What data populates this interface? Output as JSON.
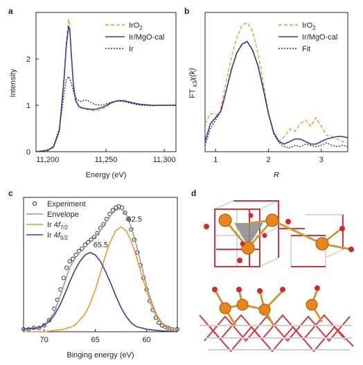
{
  "panels": {
    "a": "a",
    "b": "b",
    "c": "c",
    "d": "d"
  },
  "chart_data": [
    {
      "id": "a",
      "type": "line",
      "xlabel": "Energy (eV)",
      "ylabel": "Intensity",
      "xlim": [
        11190,
        11310
      ],
      "ylim": [
        0,
        3.0
      ],
      "xticks": [
        11200,
        11250,
        11300
      ],
      "xtick_labels": [
        "11,200",
        "11,250",
        "11,300"
      ],
      "yticks": [
        0,
        1,
        2
      ],
      "ytick_labels": [
        "0",
        "1",
        "2"
      ],
      "legend_position": "top-right",
      "series": [
        {
          "name": "IrO2",
          "name_main": "IrO",
          "name_sub": "2",
          "color": "#f0962f",
          "style": "dashed",
          "x": [
            11190,
            11200,
            11205,
            11210,
            11214,
            11216,
            11218,
            11219,
            11220,
            11222,
            11224,
            11227,
            11230,
            11235,
            11240,
            11245,
            11250,
            11255,
            11260,
            11265,
            11270,
            11275,
            11280,
            11290,
            11300,
            11310
          ],
          "y": [
            0.0,
            0.03,
            0.1,
            0.45,
            1.6,
            2.4,
            2.85,
            2.7,
            2.2,
            1.4,
            1.08,
            0.95,
            0.93,
            0.9,
            0.88,
            0.9,
            0.97,
            1.05,
            1.1,
            1.1,
            1.07,
            1.04,
            1.02,
            1.0,
            1.0,
            1.0
          ]
        },
        {
          "name": "Ir/MgO-cal",
          "color": "#3a3aa8",
          "style": "solid",
          "x": [
            11190,
            11200,
            11205,
            11210,
            11214,
            11216,
            11218,
            11219,
            11220,
            11222,
            11224,
            11227,
            11230,
            11235,
            11240,
            11245,
            11250,
            11255,
            11260,
            11265,
            11270,
            11275,
            11280,
            11290,
            11300,
            11310
          ],
          "y": [
            0.0,
            0.03,
            0.1,
            0.45,
            1.55,
            2.3,
            2.7,
            2.62,
            2.2,
            1.45,
            1.1,
            0.97,
            0.94,
            0.92,
            0.91,
            0.94,
            0.99,
            1.06,
            1.1,
            1.1,
            1.07,
            1.04,
            1.02,
            1.0,
            1.0,
            1.0
          ]
        },
        {
          "name": "Ir",
          "color": "#333333",
          "style": "dotted",
          "x": [
            11190,
            11200,
            11205,
            11210,
            11214,
            11216,
            11218,
            11220,
            11222,
            11225,
            11228,
            11232,
            11236,
            11240,
            11245,
            11250,
            11255,
            11260,
            11265,
            11270,
            11275,
            11280,
            11290,
            11300,
            11310
          ],
          "y": [
            0.0,
            0.03,
            0.12,
            0.5,
            1.25,
            1.55,
            1.62,
            1.5,
            1.3,
            1.12,
            1.08,
            1.12,
            1.08,
            1.02,
            1.0,
            1.03,
            1.07,
            1.09,
            1.08,
            1.05,
            1.02,
            1.0,
            0.99,
            1.0,
            1.0
          ]
        }
      ]
    },
    {
      "id": "b",
      "type": "line",
      "xlabel": "R",
      "ylabel_main": "FT ",
      "ylabel_sub": "k3",
      "ylabel_rest": "χ(k)",
      "xlim": [
        0.8,
        3.5
      ],
      "ylim": [
        0,
        1.1
      ],
      "xticks": [
        1,
        2,
        3
      ],
      "xtick_labels": [
        "1",
        "2",
        "3"
      ],
      "legend_position": "top-right",
      "series": [
        {
          "name": "IrO2",
          "name_main": "IrO",
          "name_sub": "2",
          "color": "#f0962f",
          "style": "dashed",
          "x": [
            0.8,
            0.9,
            1.0,
            1.05,
            1.1,
            1.2,
            1.3,
            1.4,
            1.5,
            1.6,
            1.7,
            1.8,
            1.9,
            2.0,
            2.1,
            2.2,
            2.3,
            2.4,
            2.5,
            2.6,
            2.7,
            2.8,
            2.9,
            3.0,
            3.1,
            3.2,
            3.3,
            3.4,
            3.5
          ],
          "y": [
            0.22,
            0.3,
            0.3,
            0.28,
            0.35,
            0.55,
            0.75,
            0.9,
            1.0,
            1.02,
            0.95,
            0.78,
            0.55,
            0.3,
            0.14,
            0.08,
            0.12,
            0.18,
            0.16,
            0.22,
            0.25,
            0.2,
            0.27,
            0.2,
            0.13,
            0.12,
            0.1,
            0.08,
            0.07
          ]
        },
        {
          "name": "Ir/MgO-cal",
          "color": "#3a3aa8",
          "style": "solid",
          "x": [
            0.8,
            0.9,
            1.0,
            1.1,
            1.2,
            1.3,
            1.4,
            1.5,
            1.6,
            1.7,
            1.8,
            1.9,
            2.0,
            2.1,
            2.2,
            2.3,
            2.4,
            2.5,
            2.6,
            2.7,
            2.8,
            2.9,
            3.0,
            3.1,
            3.2,
            3.3,
            3.4,
            3.5
          ],
          "y": [
            0.08,
            0.22,
            0.27,
            0.32,
            0.48,
            0.65,
            0.78,
            0.85,
            0.87,
            0.8,
            0.68,
            0.5,
            0.3,
            0.15,
            0.08,
            0.06,
            0.08,
            0.1,
            0.1,
            0.08,
            0.06,
            0.06,
            0.08,
            0.1,
            0.11,
            0.12,
            0.12,
            0.11
          ]
        },
        {
          "name": "Fit",
          "color": "#333333",
          "style": "dotted",
          "x": [
            0.8,
            0.9,
            1.0,
            1.1,
            1.2,
            1.3,
            1.4,
            1.5,
            1.6,
            1.7,
            1.8,
            1.9,
            2.0,
            2.1,
            2.2,
            2.3,
            2.4,
            2.5,
            2.6,
            2.7,
            2.8,
            2.9,
            3.0,
            3.1,
            3.2,
            3.3,
            3.4,
            3.5
          ],
          "y": [
            0.05,
            0.18,
            0.25,
            0.32,
            0.48,
            0.65,
            0.78,
            0.85,
            0.87,
            0.8,
            0.68,
            0.5,
            0.3,
            0.14,
            0.07,
            0.04,
            0.03,
            0.05,
            0.04,
            0.06,
            0.05,
            0.04,
            0.05,
            0.07,
            0.05,
            0.04,
            0.05,
            0.04
          ]
        }
      ]
    },
    {
      "id": "c",
      "type": "scatter",
      "xlabel": "Binging energy (eV)",
      "xlim": [
        72,
        57
      ],
      "xlim_note": "reversed",
      "ylim": [
        0,
        1.05
      ],
      "xticks": [
        70,
        65,
        60
      ],
      "xtick_labels": [
        "70",
        "65",
        "60"
      ],
      "legend_position": "top-left",
      "annotations": [
        {
          "text": "62.5",
          "x": 61.9,
          "y": 0.86
        },
        {
          "text": "65.5",
          "x": 65.2,
          "y": 0.66
        }
      ],
      "series": [
        {
          "name": "Experiment",
          "color": "#333333",
          "marker": "open-circle",
          "x": [
            72,
            71.5,
            71,
            70.5,
            70,
            69.5,
            69,
            68.7,
            68.4,
            68.1,
            67.8,
            67.5,
            67.2,
            66.9,
            66.6,
            66.3,
            66.0,
            65.7,
            65.4,
            65.1,
            64.8,
            64.5,
            64.2,
            63.9,
            63.6,
            63.3,
            63.0,
            62.7,
            62.4,
            62.1,
            61.8,
            61.5,
            61.2,
            60.9,
            60.6,
            60.3,
            60.0,
            59.7,
            59.4,
            59.1,
            58.8,
            58.5,
            58.2,
            57.9,
            57.5,
            57
          ],
          "y": [
            0.02,
            0.02,
            0.03,
            0.03,
            0.05,
            0.09,
            0.18,
            0.25,
            0.33,
            0.42,
            0.5,
            0.55,
            0.57,
            0.6,
            0.63,
            0.65,
            0.68,
            0.7,
            0.72,
            0.74,
            0.77,
            0.81,
            0.84,
            0.88,
            0.92,
            0.95,
            0.97,
            0.98,
            0.97,
            0.93,
            0.88,
            0.8,
            0.72,
            0.62,
            0.52,
            0.42,
            0.33,
            0.24,
            0.17,
            0.11,
            0.07,
            0.05,
            0.04,
            0.03,
            0.02,
            0.02
          ]
        },
        {
          "name": "Envelope",
          "color": "#999999",
          "style": "solid",
          "x": [
            72,
            70,
            69,
            68,
            67.5,
            67,
            66.5,
            66,
            65.5,
            65,
            64.5,
            64,
            63.5,
            63,
            62.5,
            62,
            61.5,
            61,
            60.5,
            60,
            59.5,
            59,
            58.5,
            58,
            57
          ],
          "y": [
            0.02,
            0.04,
            0.15,
            0.38,
            0.5,
            0.57,
            0.62,
            0.66,
            0.7,
            0.74,
            0.79,
            0.85,
            0.91,
            0.95,
            0.96,
            0.92,
            0.82,
            0.68,
            0.52,
            0.36,
            0.23,
            0.13,
            0.07,
            0.04,
            0.02
          ]
        },
        {
          "name": "Ir 4f7/2",
          "name_main": "Ir 4",
          "name_italic": "f",
          "name_sub": "7/2",
          "color": "#f0962f",
          "style": "solid",
          "x": [
            72,
            70,
            68,
            67,
            66,
            65.5,
            65,
            64.5,
            64,
            63.5,
            63,
            62.5,
            62,
            61.5,
            61,
            60.5,
            60,
            59.5,
            59,
            58.5,
            58,
            57
          ],
          "y": [
            0.0,
            0.0,
            0.02,
            0.05,
            0.14,
            0.22,
            0.33,
            0.46,
            0.6,
            0.71,
            0.79,
            0.82,
            0.79,
            0.71,
            0.59,
            0.45,
            0.32,
            0.2,
            0.11,
            0.06,
            0.03,
            0.01
          ]
        },
        {
          "name": "Ir 4f5/2",
          "name_main": "Ir 4",
          "name_italic": "f",
          "name_sub": "5/2",
          "color": "#3a3aa8",
          "style": "solid",
          "x": [
            72,
            70.5,
            69.5,
            69,
            68.5,
            68,
            67.5,
            67,
            66.5,
            66,
            65.5,
            65,
            64.5,
            64,
            63.5,
            63,
            62.5,
            62,
            61.5,
            61,
            60,
            59,
            57
          ],
          "y": [
            0.02,
            0.03,
            0.08,
            0.13,
            0.2,
            0.29,
            0.39,
            0.48,
            0.55,
            0.6,
            0.62,
            0.6,
            0.55,
            0.47,
            0.38,
            0.28,
            0.19,
            0.12,
            0.07,
            0.04,
            0.02,
            0.01,
            0.0
          ]
        }
      ]
    }
  ]
}
